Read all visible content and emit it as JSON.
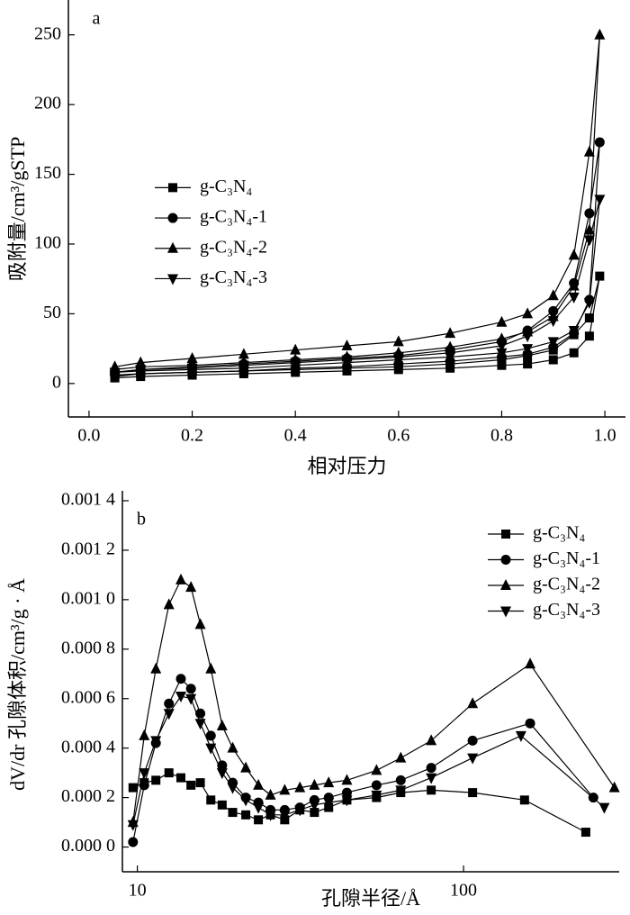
{
  "chart_data": [
    {
      "type": "line",
      "annotation": "a",
      "x_label": "相对压力",
      "y_label": "吸附量/cm³/gSTP",
      "xlim": [
        -0.04,
        1.04
      ],
      "ylim": [
        -24,
        275
      ],
      "xticks": [
        {
          "value": 0,
          "label": "0.0"
        },
        0.2,
        0.4,
        0.6,
        0.8,
        {
          "value": 1,
          "label": "1.0"
        }
      ],
      "yticks": [
        0,
        50,
        100,
        150,
        200,
        250
      ],
      "legend": "center-left",
      "series": [
        {
          "name": "g-C₃N₄",
          "color": "#000000",
          "marker": "square",
          "x": [
            0.05,
            0.1,
            0.2,
            0.3,
            0.4,
            0.5,
            0.6,
            0.7,
            0.8,
            0.85,
            0.9,
            0.94,
            0.97,
            0.99,
            0.97,
            0.94,
            0.9,
            0.85,
            0.8,
            0.7,
            0.6,
            0.5,
            0.4,
            0.3,
            0.2,
            0.1,
            0.05
          ],
          "values": [
            4,
            5,
            6,
            7,
            8,
            9,
            10,
            11,
            13,
            14,
            17,
            22,
            34,
            77,
            47,
            35,
            24,
            20,
            17,
            14,
            12,
            11,
            10,
            9,
            8,
            7,
            5
          ]
        },
        {
          "name": "g-C₃N₄-1",
          "color": "#000000",
          "marker": "circle",
          "x": [
            0.05,
            0.1,
            0.2,
            0.3,
            0.4,
            0.5,
            0.6,
            0.7,
            0.8,
            0.85,
            0.9,
            0.94,
            0.97,
            0.99,
            0.97,
            0.94,
            0.9,
            0.85,
            0.8,
            0.7,
            0.6,
            0.5,
            0.4,
            0.3,
            0.2,
            0.1,
            0.05
          ],
          "values": [
            6,
            7,
            8,
            9,
            11,
            12,
            14,
            16,
            19,
            21,
            26,
            36,
            60,
            173,
            122,
            72,
            52,
            38,
            30,
            24,
            20,
            18,
            16,
            14,
            12,
            10,
            8
          ]
        },
        {
          "name": "g-C₃N₄-2",
          "color": "#000000",
          "marker": "triangle-up",
          "x": [
            0.05,
            0.1,
            0.2,
            0.3,
            0.4,
            0.5,
            0.6,
            0.7,
            0.8,
            0.85,
            0.9,
            0.94,
            0.97,
            0.99,
            0.97,
            0.94,
            0.9,
            0.85,
            0.8,
            0.7,
            0.6,
            0.5,
            0.4,
            0.3,
            0.2,
            0.1,
            0.05
          ],
          "values": [
            10,
            12,
            13,
            15,
            17,
            19,
            22,
            26,
            32,
            37,
            48,
            70,
            110,
            250,
            166,
            92,
            63,
            50,
            44,
            36,
            30,
            27,
            24,
            21,
            18,
            15,
            12
          ]
        },
        {
          "name": "g-C₃N₄-3",
          "color": "#000000",
          "marker": "triangle-down",
          "x": [
            0.05,
            0.1,
            0.2,
            0.3,
            0.4,
            0.5,
            0.6,
            0.7,
            0.8,
            0.85,
            0.9,
            0.94,
            0.97,
            0.99,
            0.97,
            0.94,
            0.9,
            0.85,
            0.8,
            0.7,
            0.6,
            0.5,
            0.4,
            0.3,
            0.2,
            0.1,
            0.05
          ],
          "values": [
            8,
            9,
            10,
            11,
            13,
            15,
            17,
            19,
            22,
            25,
            30,
            38,
            58,
            132,
            103,
            62,
            45,
            34,
            27,
            22,
            19,
            17,
            15,
            13,
            11,
            10,
            8
          ]
        }
      ]
    },
    {
      "type": "line",
      "annotation": "b",
      "x_label": "孔隙半径/Å",
      "y_label": "dV/dr 孔隙体积/cm³/g · Å",
      "xscale": "log",
      "xlim": [
        9,
        300
      ],
      "ylim": [
        -0.0001,
        0.00144
      ],
      "xticks": [
        10,
        100
      ],
      "yticks": [
        {
          "value": 0,
          "label": "0.000 0"
        },
        {
          "value": 0.0002,
          "label": "0.000 2"
        },
        {
          "value": 0.0004,
          "label": "0.000 4"
        },
        {
          "value": 0.0006,
          "label": "0.000 6"
        },
        {
          "value": 0.0008,
          "label": "0.000 8"
        },
        {
          "value": 0.001,
          "label": "0.001 0"
        },
        {
          "value": 0.0012,
          "label": "0.001 2"
        },
        {
          "value": 0.0014,
          "label": "0.001 4"
        }
      ],
      "legend": "upper-right",
      "series": [
        {
          "name": "g-C₃N₄",
          "color": "#000000",
          "marker": "square",
          "x": [
            9.7,
            10.5,
            11.4,
            12.5,
            13.6,
            14.6,
            15.6,
            16.8,
            18.2,
            19.6,
            21.5,
            23.5,
            25.6,
            28.3,
            31.5,
            34.9,
            38.6,
            43.9,
            54.1,
            64.2,
            79.6,
            106.6,
            153.8,
            237
          ],
          "values": [
            0.00024,
            0.00026,
            0.00027,
            0.0003,
            0.00028,
            0.00025,
            0.00026,
            0.00019,
            0.00017,
            0.00014,
            0.00013,
            0.00011,
            0.00013,
            0.00011,
            0.00015,
            0.00014,
            0.00016,
            0.00019,
            0.0002,
            0.00022,
            0.00023,
            0.00022,
            0.00019,
            6e-05
          ]
        },
        {
          "name": "g-C₃N₄-1",
          "color": "#000000",
          "marker": "circle",
          "x": [
            9.7,
            10.5,
            11.4,
            12.5,
            13.6,
            14.6,
            15.6,
            16.8,
            18.2,
            19.6,
            21.5,
            23.5,
            25.6,
            28.3,
            31.5,
            34.9,
            38.6,
            43.9,
            54.1,
            64.2,
            79.6,
            106.6,
            160,
            250
          ],
          "values": [
            2e-05,
            0.00025,
            0.00042,
            0.00058,
            0.00068,
            0.00064,
            0.00054,
            0.00045,
            0.00033,
            0.00026,
            0.0002,
            0.00018,
            0.00015,
            0.00015,
            0.00016,
            0.00019,
            0.0002,
            0.00022,
            0.00025,
            0.00027,
            0.00032,
            0.00043,
            0.0005,
            0.0002
          ]
        },
        {
          "name": "g-C₃N₄-2",
          "color": "#000000",
          "marker": "triangle-up",
          "x": [
            9.7,
            10.5,
            11.4,
            12.5,
            13.6,
            14.6,
            15.6,
            16.8,
            18.2,
            19.6,
            21.5,
            23.5,
            25.6,
            28.3,
            31.5,
            34.9,
            38.6,
            43.9,
            54.1,
            64.2,
            79.6,
            106.6,
            160,
            290
          ],
          "values": [
            0.0001,
            0.00045,
            0.00072,
            0.00098,
            0.00108,
            0.00105,
            0.0009,
            0.00072,
            0.00049,
            0.0004,
            0.00032,
            0.00025,
            0.00021,
            0.00023,
            0.00024,
            0.00025,
            0.00026,
            0.00027,
            0.00031,
            0.00036,
            0.00043,
            0.00058,
            0.00074,
            0.00024
          ]
        },
        {
          "name": "g-C₃N₄-3",
          "color": "#000000",
          "marker": "triangle-down",
          "x": [
            9.7,
            10.5,
            11.4,
            12.5,
            13.6,
            14.6,
            15.6,
            16.8,
            18.2,
            19.6,
            21.5,
            23.5,
            25.6,
            28.3,
            31.5,
            34.9,
            38.6,
            43.9,
            54.1,
            64.2,
            79.6,
            106.6,
            150,
            270
          ],
          "values": [
            9e-05,
            0.0003,
            0.00043,
            0.00054,
            0.00061,
            0.0006,
            0.0005,
            0.0004,
            0.0003,
            0.00024,
            0.00019,
            0.00016,
            0.00013,
            0.00013,
            0.00015,
            0.00017,
            0.00018,
            0.00019,
            0.00021,
            0.00023,
            0.00028,
            0.00036,
            0.00045,
            0.00016
          ]
        }
      ]
    }
  ]
}
